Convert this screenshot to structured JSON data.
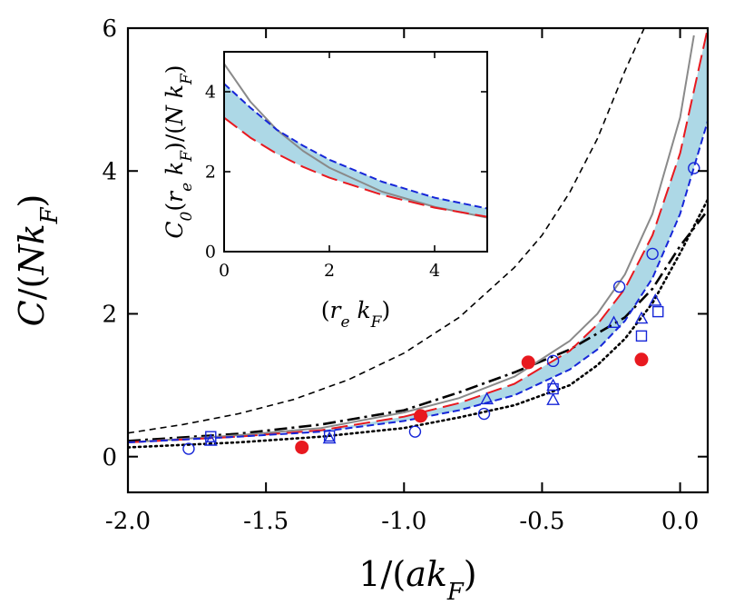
{
  "chart_data": [
    {
      "type": "line",
      "title": "",
      "xlabel": "1/(ak_F)",
      "ylabel": "C/(Nk_F)",
      "xlim": [
        -2.0,
        0.1
      ],
      "ylim": [
        -0.5,
        6.0
      ],
      "xticks": [
        "-2.0",
        "-1.5",
        "-1.0",
        "-0.5",
        "0.0"
      ],
      "xtick_values": [
        -2.0,
        -1.5,
        -1.0,
        -0.5,
        0.0
      ],
      "yticks": [
        "0",
        "2",
        "4",
        "6"
      ],
      "ytick_values": [
        0,
        2,
        4,
        6
      ],
      "grid": false,
      "legend": "none",
      "series": [
        {
          "style": "short-dashed-black",
          "color": "#000000",
          "x": [
            -2.0,
            -1.8,
            -1.6,
            -1.4,
            -1.2,
            -1.0,
            -0.8,
            -0.6,
            -0.5,
            -0.4,
            -0.3,
            -0.2,
            -0.13
          ],
          "y": [
            0.33,
            0.45,
            0.6,
            0.8,
            1.08,
            1.45,
            1.95,
            2.65,
            3.1,
            3.7,
            4.45,
            5.4,
            6.0
          ]
        },
        {
          "style": "dash-dot-black",
          "color": "#000000",
          "x": [
            -2.0,
            -1.6,
            -1.3,
            -1.0,
            -0.8,
            -0.6,
            -0.4,
            -0.2,
            -0.1,
            0.0,
            0.1
          ],
          "y": [
            0.22,
            0.32,
            0.45,
            0.65,
            0.9,
            1.18,
            1.5,
            1.95,
            2.35,
            2.95,
            3.45
          ]
        },
        {
          "style": "dotted-black",
          "color": "#000000",
          "x": [
            -2.0,
            -1.6,
            -1.3,
            -1.0,
            -0.8,
            -0.6,
            -0.4,
            -0.3,
            -0.2,
            -0.1,
            0.0,
            0.1
          ],
          "y": [
            0.13,
            0.2,
            0.28,
            0.4,
            0.55,
            0.72,
            1.0,
            1.28,
            1.65,
            2.15,
            2.85,
            3.6
          ]
        },
        {
          "style": "solid-gray",
          "color": "#8a8a8a",
          "x": [
            -2.0,
            -1.6,
            -1.3,
            -1.0,
            -0.8,
            -0.6,
            -0.4,
            -0.3,
            -0.2,
            -0.1,
            0.0,
            0.05
          ],
          "y": [
            0.2,
            0.3,
            0.4,
            0.62,
            0.82,
            1.12,
            1.62,
            2.0,
            2.55,
            3.4,
            4.75,
            5.9
          ]
        },
        {
          "style": "long-dashed-red",
          "color": "#e8191f",
          "x": [
            -2.0,
            -1.6,
            -1.3,
            -1.0,
            -0.8,
            -0.6,
            -0.4,
            -0.3,
            -0.2,
            -0.1,
            0.0,
            0.1
          ],
          "y": [
            0.2,
            0.28,
            0.37,
            0.56,
            0.75,
            1.02,
            1.48,
            1.85,
            2.35,
            3.1,
            4.25,
            6.0
          ]
        },
        {
          "style": "dashed-blue",
          "color": "#1626d8",
          "x": [
            -2.0,
            -1.6,
            -1.3,
            -1.0,
            -0.8,
            -0.6,
            -0.4,
            -0.3,
            -0.2,
            -0.1,
            0.0,
            0.1
          ],
          "y": [
            0.2,
            0.28,
            0.35,
            0.5,
            0.65,
            0.86,
            1.22,
            1.5,
            1.9,
            2.5,
            3.4,
            4.7
          ]
        },
        {
          "type": "band",
          "color": "#add8e6",
          "between": [
            4,
            5
          ]
        }
      ],
      "points": [
        {
          "marker": "filled-circle",
          "color": "#e8191f",
          "x": [
            -1.37,
            -0.94,
            -0.55,
            -0.14
          ],
          "y": [
            0.13,
            0.57,
            1.32,
            1.36
          ]
        },
        {
          "marker": "open-circle",
          "color": "#1626d8",
          "x": [
            -1.78,
            -0.96,
            -0.71,
            -0.46,
            -0.22,
            -0.1,
            0.05
          ],
          "y": [
            0.11,
            0.35,
            0.6,
            1.34,
            2.38,
            2.84,
            4.04
          ]
        },
        {
          "marker": "open-square",
          "color": "#1626d8",
          "x": [
            -1.7,
            -1.27,
            -0.46,
            -0.14,
            -0.08
          ],
          "y": [
            0.28,
            0.29,
            0.95,
            1.69,
            2.03
          ]
        },
        {
          "marker": "open-triangle",
          "color": "#1626d8",
          "x": [
            -1.7,
            -1.27,
            -0.7,
            -0.46,
            -0.46,
            -0.24,
            -0.14,
            -0.09
          ],
          "y": [
            0.22,
            0.25,
            0.8,
            0.99,
            0.79,
            1.87,
            1.93,
            2.18
          ]
        }
      ]
    },
    {
      "type": "line",
      "title": "",
      "xlabel": "(r_e k_F)",
      "ylabel": "C_0(r_e k_F)/(N k_F)",
      "xlim": [
        0,
        5
      ],
      "ylim": [
        0,
        5
      ],
      "xticks": [
        "0",
        "2",
        "4"
      ],
      "xtick_values": [
        0,
        2,
        4
      ],
      "yticks": [
        "0",
        "2",
        "4"
      ],
      "ytick_values": [
        0,
        2,
        4
      ],
      "grid": false,
      "legend": "none",
      "series": [
        {
          "style": "solid-gray",
          "color": "#8a8a8a",
          "x": [
            0,
            0.5,
            1.0,
            1.5,
            2.0,
            3.0,
            4.0,
            5.0
          ],
          "y": [
            4.7,
            3.75,
            3.05,
            2.52,
            2.1,
            1.5,
            1.12,
            0.85
          ]
        },
        {
          "style": "dashed-blue",
          "color": "#1626d8",
          "x": [
            0,
            0.5,
            1.0,
            1.5,
            2.0,
            3.0,
            4.0,
            5.0
          ],
          "y": [
            4.2,
            3.6,
            3.05,
            2.65,
            2.3,
            1.75,
            1.35,
            1.08
          ]
        },
        {
          "style": "long-dashed-red",
          "color": "#e8191f",
          "x": [
            0,
            0.5,
            1.0,
            1.5,
            2.0,
            3.0,
            4.0,
            5.0
          ],
          "y": [
            3.35,
            2.85,
            2.45,
            2.12,
            1.85,
            1.42,
            1.1,
            0.87
          ]
        },
        {
          "type": "band",
          "color": "#add8e6",
          "between": [
            1,
            2
          ]
        }
      ]
    }
  ]
}
